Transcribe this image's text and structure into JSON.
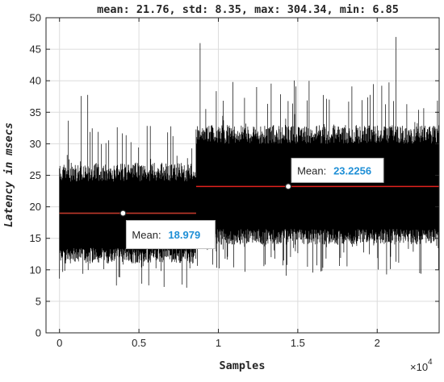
{
  "chart_data": {
    "type": "line",
    "title": "mean: 21.76, std: 8.35, max: 304.34, min: 6.85",
    "xlabel": "Samples",
    "ylabel": "Latency in msecs",
    "x_exponent_label": "×10",
    "x_exponent_power": "4",
    "xlim": [
      -850,
      23900
    ],
    "ylim": [
      0,
      50
    ],
    "x_ticks": [
      0,
      5000,
      10000,
      15000,
      20000
    ],
    "x_tick_labels": [
      "0",
      "0.5",
      "1",
      "1.5",
      "2"
    ],
    "y_ticks": [
      0,
      5,
      10,
      15,
      20,
      25,
      30,
      35,
      40,
      45,
      50
    ],
    "y_tick_labels": [
      "0",
      "5",
      "10",
      "15",
      "20",
      "25",
      "30",
      "35",
      "40",
      "45",
      "50"
    ],
    "grid": true,
    "series": [
      {
        "color": "#000000",
        "description": "Dense per-sample latency trace",
        "segments": [
          {
            "x_start": 0,
            "x_end": 8600,
            "band_low": 12,
            "band_high": 27,
            "spike_low": 7,
            "spike_high": 40.5
          },
          {
            "x_start": 8600,
            "x_end": 23900,
            "band_low": 15,
            "band_high": 33,
            "spike_low": 9,
            "spike_high": 49
          }
        ]
      }
    ],
    "mean_lines": [
      {
        "x_start": 0,
        "x_end": 8600,
        "y": 18.979,
        "color": "#c0392b"
      },
      {
        "x_start": 8600,
        "x_end": 23900,
        "y": 23.2256,
        "color": "#e0221d"
      }
    ],
    "datatips": [
      {
        "x": 4000,
        "y": 18.979,
        "label": "Mean:",
        "value": "18.979"
      },
      {
        "x": 14400,
        "y": 23.2256,
        "label": "Mean:",
        "value": "23.2256"
      }
    ]
  }
}
